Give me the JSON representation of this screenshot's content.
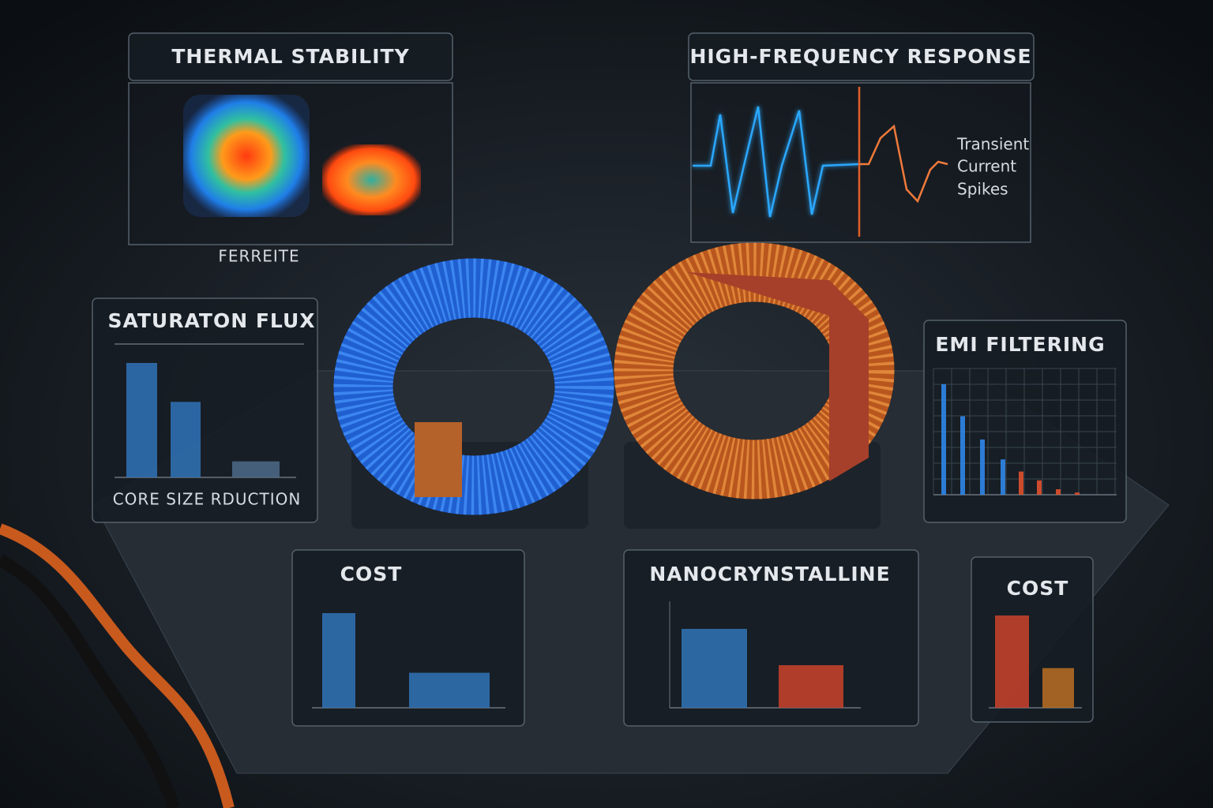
{
  "thermal_stability": {
    "title": "THERMAL STABILITY",
    "label": "FERREITE"
  },
  "high_frequency_response": {
    "title": "HIGH-FREQUENCY RESPONSE",
    "annotation": [
      "Transient",
      "Current",
      "Spikes"
    ]
  },
  "saturation_flux": {
    "title": "SATURATON FLUX",
    "label": "CORE SIZE RDUCTION",
    "values": [
      100,
      66,
      14
    ],
    "colors": [
      "#2f6fb0",
      "#2f6fb0",
      "#4a6684"
    ]
  },
  "emi_filtering": {
    "title": "EMI FILTERING",
    "values": [
      100,
      71,
      50,
      32,
      21,
      13,
      5,
      2
    ],
    "colors": [
      "#2f86ea",
      "#2f86ea",
      "#2f86ea",
      "#2f86ea",
      "#e0502e",
      "#e0502e",
      "#e0502e",
      "#e0502e"
    ]
  },
  "cost_left": {
    "title": "COST",
    "values": [
      100,
      37
    ],
    "colors": [
      "#2f6fb0",
      "#2f6fb0"
    ]
  },
  "nanocrystalline": {
    "title": "NANOCRYNSTALLINE",
    "values": [
      100,
      54
    ],
    "colors": [
      "#2f6fb0",
      "#c0402b"
    ]
  },
  "cost_right": {
    "title": "COST",
    "values": [
      100,
      43
    ],
    "colors": [
      "#c0402b",
      "#b06a24"
    ]
  }
}
